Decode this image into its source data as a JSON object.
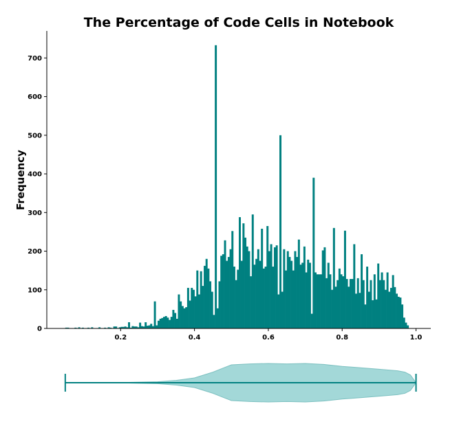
{
  "chart_data": [
    {
      "type": "bar",
      "subtype": "histogram",
      "title": "The Percentage of Code Cells in Notebook",
      "xlabel": "",
      "ylabel": "Frequency",
      "xlim": [
        0.0,
        1.04
      ],
      "ylim": [
        0,
        770
      ],
      "xticks": [
        "0.2",
        "0.4",
        "0.6",
        "0.8",
        "1.0"
      ],
      "yticks": [
        "0",
        "100",
        "200",
        "300",
        "400",
        "500",
        "600",
        "700"
      ],
      "bar_color": "#008080",
      "grid": false,
      "bin_width": 0.005,
      "bins_start": 0.05,
      "values": [
        2,
        2,
        0,
        0,
        0,
        2,
        1,
        3,
        0,
        2,
        0,
        1,
        2,
        0,
        3,
        0,
        0,
        1,
        3,
        0,
        0,
        2,
        0,
        3,
        2,
        0,
        5,
        5,
        1,
        3,
        4,
        4,
        5,
        3,
        16,
        2,
        6,
        5,
        5,
        3,
        15,
        6,
        5,
        16,
        7,
        8,
        12,
        6,
        70,
        8,
        20,
        25,
        27,
        30,
        32,
        28,
        22,
        30,
        48,
        40,
        25,
        88,
        70,
        58,
        52,
        55,
        105,
        72,
        105,
        100,
        83,
        150,
        88,
        148,
        110,
        162,
        180,
        155,
        122,
        95,
        35,
        733,
        52,
        122,
        188,
        192,
        228,
        175,
        185,
        205,
        252,
        160,
        125,
        152,
        288,
        175,
        272,
        235,
        212,
        200,
        135,
        295,
        165,
        180,
        205,
        175,
        258,
        155,
        160,
        265,
        200,
        218,
        160,
        210,
        215,
        88,
        500,
        95,
        205,
        150,
        200,
        185,
        175,
        150,
        200,
        185,
        230,
        165,
        170,
        212,
        145,
        178,
        170,
        38,
        390,
        145,
        140,
        140,
        140,
        202,
        210,
        130,
        170,
        140,
        100,
        260,
        108,
        125,
        155,
        140,
        135,
        253,
        128,
        108,
        128,
        128,
        218,
        90,
        130,
        92,
        192,
        125,
        62,
        160,
        95,
        125,
        73,
        140,
        75,
        168,
        125,
        145,
        125,
        100,
        145,
        95,
        105,
        138,
        107,
        90,
        82,
        80,
        62,
        28,
        15,
        8
      ]
    },
    {
      "type": "violin",
      "xlim": [
        0.0,
        1.04
      ],
      "min": 0.05,
      "max": 1.0,
      "fill_color": "#a3d8d8",
      "edge_color": "#7cc0c0",
      "line_color": "#008080",
      "density": [
        [
          0.05,
          0.0
        ],
        [
          0.2,
          0.01
        ],
        [
          0.3,
          0.05
        ],
        [
          0.35,
          0.12
        ],
        [
          0.4,
          0.25
        ],
        [
          0.45,
          0.55
        ],
        [
          0.48,
          0.78
        ],
        [
          0.5,
          0.93
        ],
        [
          0.55,
          0.98
        ],
        [
          0.6,
          1.0
        ],
        [
          0.65,
          0.98
        ],
        [
          0.7,
          1.0
        ],
        [
          0.75,
          0.95
        ],
        [
          0.8,
          0.85
        ],
        [
          0.85,
          0.78
        ],
        [
          0.9,
          0.7
        ],
        [
          0.95,
          0.62
        ],
        [
          0.97,
          0.55
        ],
        [
          0.985,
          0.4
        ],
        [
          1.0,
          0.0
        ]
      ]
    }
  ]
}
